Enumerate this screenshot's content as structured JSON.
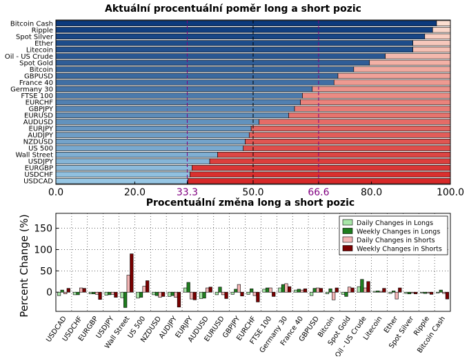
{
  "chart_data": [
    {
      "type": "bar",
      "orientation": "horizontal",
      "stacked": true,
      "title": "Aktuální procentuální poměr long a short pozic",
      "xlim": [
        0,
        100
      ],
      "x_ticks": [
        "0.0",
        "20.0",
        "33.3",
        "50.0",
        "66.6",
        "80.0",
        "100.0"
      ],
      "reference_lines": [
        33.3,
        50.0,
        66.6
      ],
      "reference_color": "#800080",
      "long_color": "blue gradient (dark to light)",
      "short_color": "red/salmon gradient",
      "categories": [
        "Bitcoin Cash",
        "Ripple",
        "Spot Silver",
        "Ether",
        "Litecoin",
        "Oil - US Crude",
        "Spot Gold",
        "Bitcoin",
        "GBPUSD",
        "France 40",
        "Germany 30",
        "FTSE 100",
        "EURCHF",
        "GBPJPY",
        "EURUSD",
        "AUDUSD",
        "EURJPY",
        "AUDJPY",
        "NZDUSD",
        "US 500",
        "Wall Street",
        "USDJPY",
        "EURGBP",
        "USDCHF",
        "USDCAD"
      ],
      "series": [
        {
          "name": "",
          "values": [
            96.5,
            95.5,
            93.5,
            90.5,
            90.5,
            83.5,
            79.5,
            75.5,
            71.5,
            70.5,
            65.0,
            62.5,
            62.0,
            60.5,
            59.0,
            51.5,
            49.5,
            49.0,
            48.0,
            47.5,
            41.0,
            39.0,
            34.5,
            34.0,
            33.5
          ]
        }
      ]
    },
    {
      "type": "bar",
      "title": "Procentuální změna long a short pozic",
      "ylabel": "Percent Change (%)",
      "ylim": [
        -45,
        185
      ],
      "y_ticks": [
        "0",
        "50",
        "100",
        "150"
      ],
      "grid": true,
      "legend_position": "top-right",
      "categories": [
        "USDCAD",
        "USDCHF",
        "EURGBP",
        "USDJPY",
        "Wall Street",
        "US 500",
        "NZDUSD",
        "AUDJPY",
        "EURJPY",
        "AUDUSD",
        "EURUSD",
        "GBPJPY",
        "EURCHF",
        "FTSE 100",
        "Germany 30",
        "France 40",
        "GBPUSD",
        "Bitcoin",
        "Spot Gold",
        "Oil - US Crude",
        "Litecoin",
        "Ether",
        "Spot Silver",
        "Ripple",
        "Bitcoin Cash"
      ],
      "series": [
        {
          "name": "Daily Changes in Longs",
          "color": "#a8e6a8",
          "values": [
            -8,
            -6,
            -4,
            -7,
            -13,
            -14,
            -6,
            -10,
            10,
            -15,
            -6,
            -5,
            -5,
            7,
            10,
            5,
            -8,
            -4,
            -5,
            13,
            2,
            -3,
            -3,
            -2,
            -2
          ]
        },
        {
          "name": "Weekly Changes in Longs",
          "color": "#1e7d1e",
          "values": [
            5,
            -6,
            -4,
            -6,
            -36,
            -12,
            -8,
            -8,
            23,
            -14,
            12,
            7,
            8,
            10,
            18,
            7,
            9,
            8,
            -10,
            30,
            3,
            3,
            -4,
            -3,
            5
          ]
        },
        {
          "name": "Daily Changes in Shorts",
          "color": "#f4b6b6",
          "values": [
            -4,
            10,
            -5,
            -5,
            40,
            14,
            -12,
            -12,
            -16,
            10,
            -6,
            18,
            -8,
            10,
            20,
            5,
            10,
            -18,
            12,
            10,
            2,
            -16,
            -2,
            -2,
            -3
          ]
        },
        {
          "name": "Weekly Changes in Shorts",
          "color": "#7a0000",
          "values": [
            9,
            9,
            -17,
            -12,
            90,
            27,
            -10,
            -35,
            -18,
            12,
            -15,
            -9,
            -23,
            -10,
            13,
            8,
            9,
            10,
            10,
            25,
            9,
            10,
            -4,
            -5,
            -16
          ]
        }
      ]
    }
  ]
}
